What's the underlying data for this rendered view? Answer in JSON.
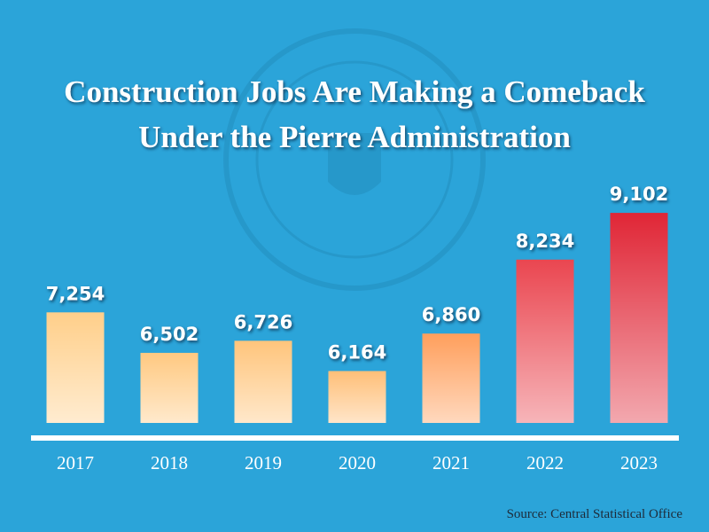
{
  "chart_data": {
    "type": "bar",
    "title": [
      "Construction Jobs Are Making a Comeback",
      "Under the Pierre Administration"
    ],
    "categories": [
      "2017",
      "2018",
      "2019",
      "2020",
      "2021",
      "2022",
      "2023"
    ],
    "values": [
      7254,
      6502,
      6726,
      6164,
      6860,
      8234,
      9102
    ],
    "value_labels": [
      "7,254",
      "6,502",
      "6,726",
      "6,164",
      "6,860",
      "8,234",
      "9,102"
    ],
    "colors": [
      "#ffcf8a",
      "#ffc981",
      "#ffc57c",
      "#ffbf78",
      "#ff9f5c",
      "#ea4650",
      "#e02636"
    ],
    "ylim": [
      5200,
      9400
    ],
    "source": "Source: Central Statistical Office"
  }
}
